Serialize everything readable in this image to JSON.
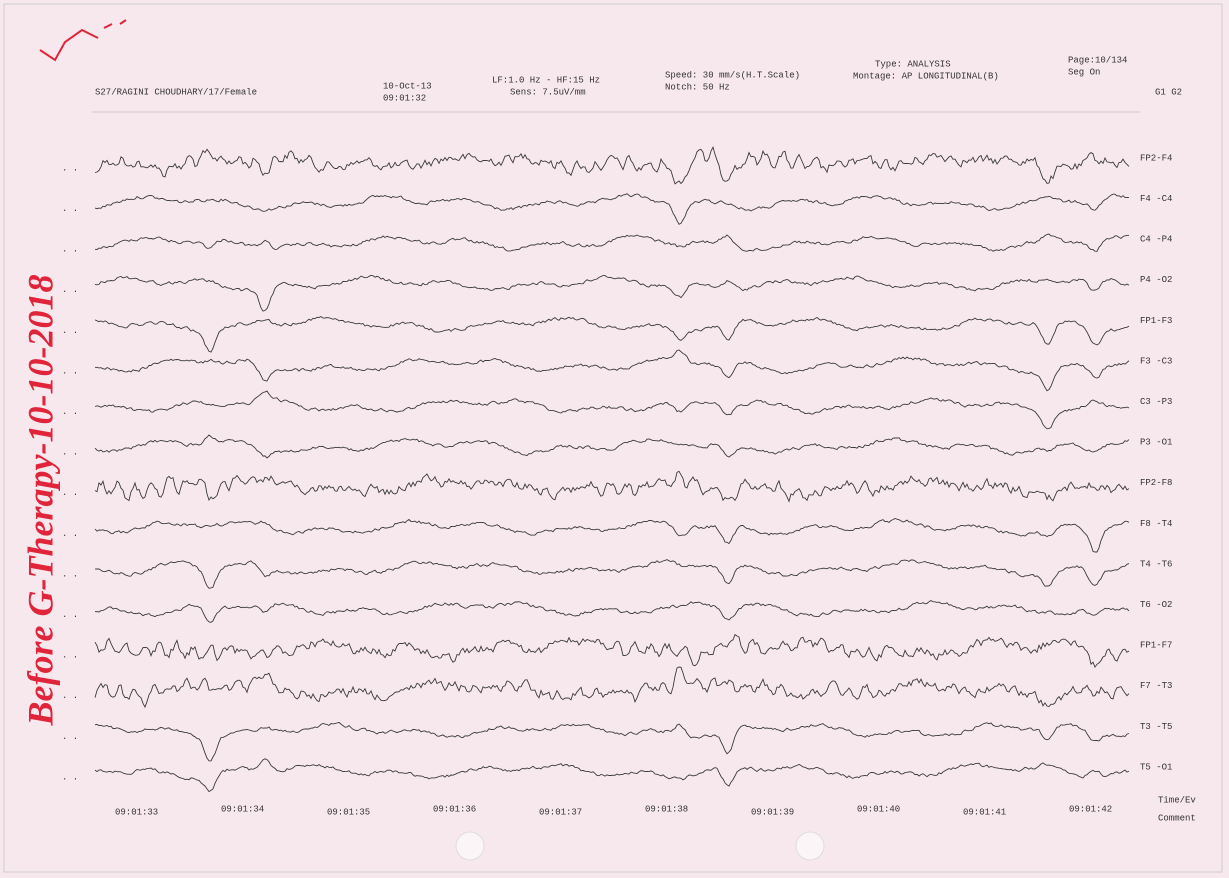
{
  "header": {
    "patient": "S27/RAGINI CHOUDHARY/17/Female",
    "date": "10-Oct-13",
    "time": "09:01:32",
    "filter": "LF:1.0 Hz - HF:15 Hz",
    "sensitivity": "Sens: 7.5uV/mm",
    "speed": "Speed: 30 mm/s(H.T.Scale)",
    "notch": "Notch: 50 Hz",
    "type": "Type: ANALYSIS",
    "montage": "Montage: AP LONGITUDINAL(B)",
    "page": "Page:10/134",
    "seg": "Seg On",
    "groups": "G1  G2"
  },
  "channels": [
    "FP2-F4",
    "F4 -C4",
    "C4 -P4",
    "P4 -O2",
    "FP1-F3",
    "F3 -C3",
    "C3 -P3",
    "P3 -O1",
    "FP2-F8",
    "F8 -T4",
    "T4 -T6",
    "T6 -O2",
    "FP1-F7",
    "F7 -T3",
    "T3 -T5",
    "T5 -O1"
  ],
  "footer_rows": [
    "Time/Ev",
    "Comment"
  ],
  "timestamps": [
    "09:01:33",
    "09:01:34",
    "09:01:35",
    "09:01:36",
    "09:01:37",
    "09:01:38",
    "09:01:39",
    "09:01:40",
    "09:01:41",
    "09:01:42"
  ],
  "annotation": "Before G-Therapy-10-10-2018"
}
